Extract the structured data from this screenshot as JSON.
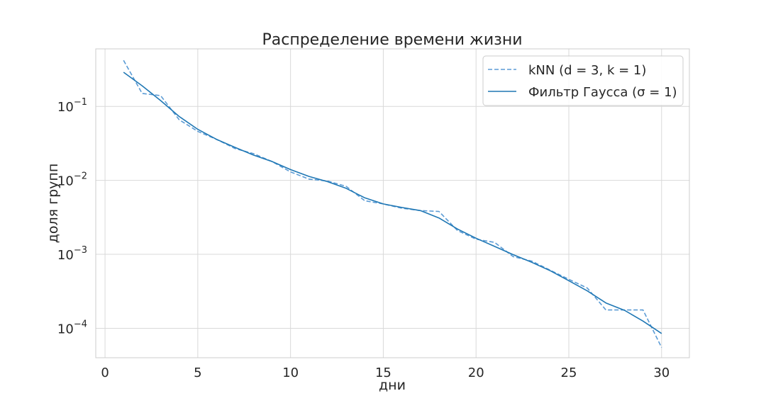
{
  "chart_data": {
    "type": "line",
    "title": "Распределение времени жизни",
    "xlabel": "дни",
    "ylabel": "доля групп",
    "xlim": [
      -0.5,
      31.5
    ],
    "ylim": [
      4e-05,
      0.6
    ],
    "yscale": "log",
    "grid": true,
    "legend_position": "top-right",
    "x_ticks": [
      0,
      5,
      10,
      15,
      20,
      25,
      30
    ],
    "y_ticks": [
      {
        "value": 0.1,
        "base": "10",
        "exp": "−1"
      },
      {
        "value": 0.01,
        "base": "10",
        "exp": "−2"
      },
      {
        "value": 0.001,
        "base": "10",
        "exp": "−3"
      },
      {
        "value": 0.0001,
        "base": "10",
        "exp": "−4"
      }
    ],
    "x": [
      1,
      2,
      3,
      4,
      5,
      6,
      7,
      8,
      9,
      10,
      11,
      12,
      13,
      14,
      15,
      16,
      17,
      18,
      19,
      20,
      21,
      22,
      23,
      24,
      25,
      26,
      27,
      28,
      29,
      30
    ],
    "series": [
      {
        "name": "kNN (d = 3, k = 1)",
        "style": "dashed",
        "color": "#5b9bd5",
        "values": [
          0.42,
          0.15,
          0.14,
          0.066,
          0.046,
          0.036,
          0.027,
          0.023,
          0.018,
          0.013,
          0.0104,
          0.0098,
          0.0083,
          0.0053,
          0.0048,
          0.0042,
          0.0039,
          0.0038,
          0.0021,
          0.0016,
          0.00145,
          0.00093,
          0.00081,
          0.00061,
          0.00046,
          0.00035,
          0.000177,
          0.000177,
          0.000177,
          5.5e-05
        ]
      },
      {
        "name": "Фильтр Гаусса (σ = 1)",
        "style": "solid",
        "color": "#1f77b4",
        "values": [
          0.29,
          0.19,
          0.12,
          0.073,
          0.049,
          0.036,
          0.028,
          0.022,
          0.018,
          0.014,
          0.0113,
          0.0096,
          0.0078,
          0.0058,
          0.0048,
          0.0043,
          0.0039,
          0.0031,
          0.0022,
          0.00165,
          0.00128,
          0.00099,
          0.00078,
          0.0006,
          0.00044,
          0.00032,
          0.00022,
          0.000175,
          0.000125,
          8.5e-05
        ]
      }
    ]
  }
}
